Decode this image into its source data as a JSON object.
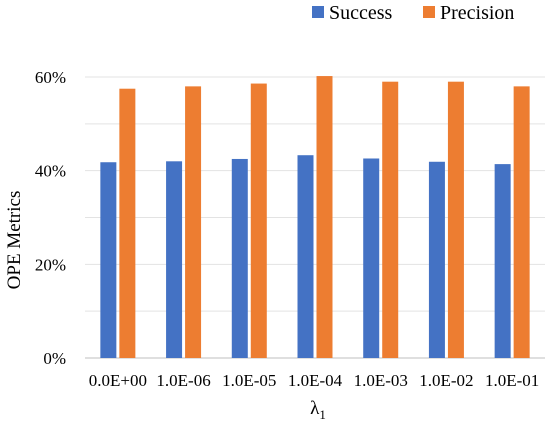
{
  "chart_data": {
    "type": "bar",
    "categories": [
      "0.0E+00",
      "1.0E-06",
      "1.0E-05",
      "1.0E-04",
      "1.0E-03",
      "1.0E-02",
      "1.0E-01"
    ],
    "series": [
      {
        "name": "Success",
        "values": [
          41.8,
          42.0,
          42.5,
          43.3,
          42.6,
          41.9,
          41.4
        ],
        "color": "#4472C4"
      },
      {
        "name": "Precision",
        "values": [
          57.5,
          58.0,
          58.6,
          60.2,
          59.0,
          59.0,
          58.0
        ],
        "color": "#ED7D31"
      }
    ],
    "xlabel_base": "λ",
    "xlabel_subscript": "1",
    "ylabel": "OPE Metrics",
    "ylim": [
      0,
      60
    ],
    "yticks": [
      0,
      20,
      40,
      60
    ],
    "ytick_labels": [
      "0%",
      "20%",
      "40%",
      "60%"
    ],
    "grid": true,
    "legend_position": "top-right"
  }
}
